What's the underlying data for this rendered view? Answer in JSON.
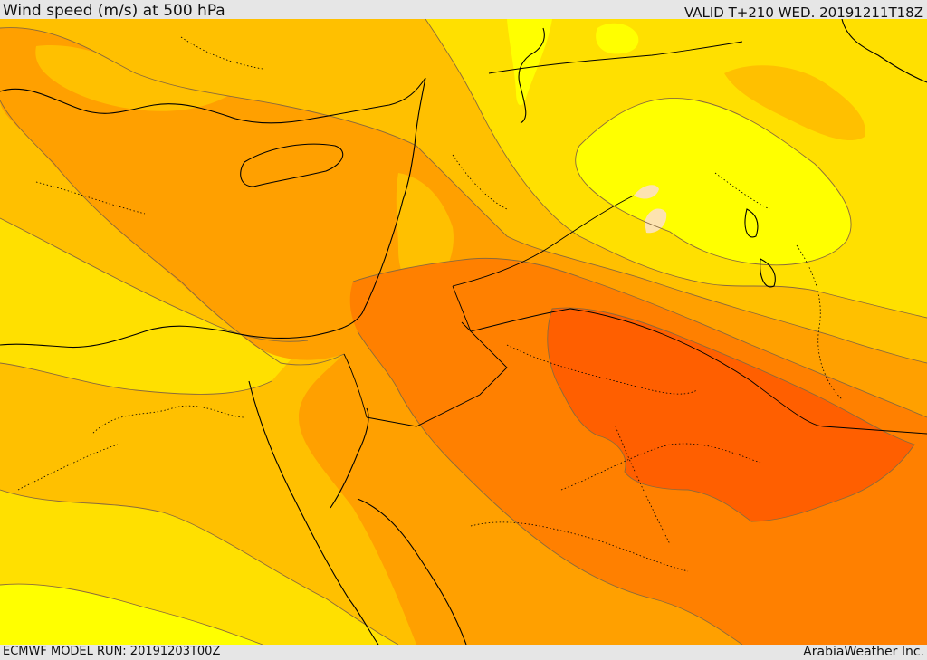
{
  "header": {
    "title": "Wind speed (m/s) at 500 hPa",
    "valid": "VALID T+210 WED. 20191211T18Z"
  },
  "footer": {
    "model_run": "ECMWF MODEL RUN: 20191203T00Z",
    "credit": "ArabiaWeather Inc."
  },
  "palette": {
    "band_20": "#ffff00",
    "band_25": "#ffe000",
    "band_30": "#ffc000",
    "band_35": "#ffa000",
    "band_40": "#ff8000",
    "band_45": "#ff5f00",
    "calm": "#fde3b0",
    "contour": "#8a6a3c",
    "coast": "#000000"
  }
}
